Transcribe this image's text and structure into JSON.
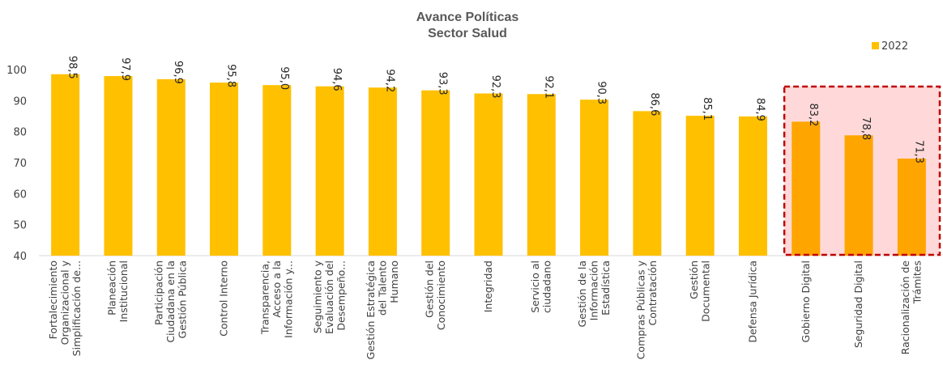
{
  "chart_data": {
    "type": "bar",
    "title": [
      "Avance Políticas",
      "Sector Salud"
    ],
    "legend": {
      "entries": [
        "2022"
      ],
      "position": "top-right"
    },
    "ylim": [
      40,
      100
    ],
    "yticks": [
      40,
      50,
      60,
      70,
      80,
      90,
      100
    ],
    "grid": false,
    "categories": [
      [
        "Fortalecimiento",
        "Organizacional y",
        "Simplificación de..."
      ],
      [
        "Planeación",
        "Institucional"
      ],
      [
        "Participación",
        "Ciudadana en la",
        "Gestión Pública"
      ],
      [
        "Control Interno"
      ],
      [
        "Transparencia,",
        "Acceso a la",
        "Información y..."
      ],
      [
        "Seguimiento y",
        "Evaluación del",
        "Desempeño..."
      ],
      [
        "Gestión Estratégica",
        "del Talento",
        "Humano"
      ],
      [
        "Gestión del",
        "Conocimiento"
      ],
      [
        "Integridad"
      ],
      [
        "Servicio al",
        "ciudadano"
      ],
      [
        "Gestión de la",
        "Información",
        "Estadística"
      ],
      [
        "Compras Públicas y",
        "Contratación"
      ],
      [
        "Gestión",
        "Documental"
      ],
      [
        "Defensa Jurídica"
      ],
      [
        "Gobierno Digital"
      ],
      [
        "Seguridad Digital"
      ],
      [
        "Racionalización de",
        "Trámites"
      ]
    ],
    "series": [
      {
        "name": "2022",
        "values": [
          98.5,
          97.9,
          96.9,
          95.8,
          95.0,
          94.6,
          94.2,
          93.3,
          92.3,
          92.1,
          90.3,
          86.6,
          85.1,
          84.9,
          83.2,
          78.8,
          71.3
        ],
        "labels": [
          "98,5",
          "97,9",
          "96,9",
          "95,8",
          "95,0",
          "94,6",
          "94,2",
          "93,3",
          "92,3",
          "92,1",
          "90,3",
          "86,6",
          "85,1",
          "84,9",
          "83,2",
          "78,8",
          "71,3"
        ]
      }
    ],
    "highlight": {
      "from_index": 14,
      "to_index": 16,
      "fill": "#FFD9D9",
      "border": "#C00000"
    },
    "colors": {
      "bar": "#FFC000",
      "highlight_bar": "#FFA500",
      "text": "#404040"
    }
  }
}
